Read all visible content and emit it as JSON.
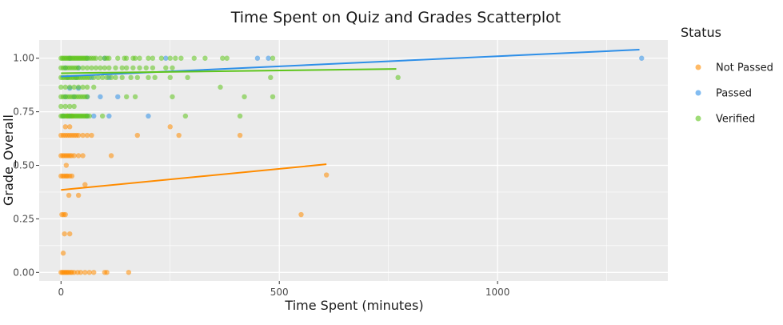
{
  "chart_data": {
    "type": "scatter",
    "title": "Time Spent on Quiz and Grades Scatterplot",
    "xlabel": "Time Spent (minutes)",
    "ylabel": "Grade_Overall",
    "xlim": [
      -50,
      1390
    ],
    "ylim": [
      -0.04,
      1.085
    ],
    "x_ticks": [
      0,
      500,
      1000
    ],
    "y_ticks": [
      0.0,
      0.25,
      0.5,
      0.75,
      1.0
    ],
    "x_tick_labels": [
      "0",
      "500",
      "1000"
    ],
    "y_tick_labels": [
      "0.00",
      "0.25",
      "0.50",
      "0.75",
      "1.00"
    ],
    "grid": true,
    "legend": {
      "title": "Status",
      "position": "right",
      "entries": [
        "Not Passed",
        "Passed",
        "Verified"
      ]
    },
    "colors": {
      "panel": "#ebebeb",
      "grid": "#ffffff",
      "Not Passed": "#ff8c00",
      "Passed": "#2e8fe8",
      "Verified": "#5fc51c"
    },
    "series": [
      {
        "name": "Not Passed",
        "points": [
          [
            0,
            0
          ],
          [
            3,
            0
          ],
          [
            6,
            0
          ],
          [
            9,
            0
          ],
          [
            12,
            0
          ],
          [
            15,
            0
          ],
          [
            18,
            0
          ],
          [
            22,
            0
          ],
          [
            25,
            0
          ],
          [
            30,
            0
          ],
          [
            38,
            0
          ],
          [
            45,
            0
          ],
          [
            55,
            0
          ],
          [
            65,
            0
          ],
          [
            75,
            0
          ],
          [
            100,
            0
          ],
          [
            105,
            0
          ],
          [
            155,
            0
          ],
          [
            5,
            0.09
          ],
          [
            8,
            0.18
          ],
          [
            20,
            0.18
          ],
          [
            2,
            0.27
          ],
          [
            6,
            0.27
          ],
          [
            10,
            0.27
          ],
          [
            18,
            0.36
          ],
          [
            40,
            0.36
          ],
          [
            55,
            0.41
          ],
          [
            0,
            0.45
          ],
          [
            4,
            0.45
          ],
          [
            8,
            0.45
          ],
          [
            12,
            0.45
          ],
          [
            15,
            0.45
          ],
          [
            20,
            0.45
          ],
          [
            25,
            0.45
          ],
          [
            12,
            0.5
          ],
          [
            0,
            0.545
          ],
          [
            4,
            0.545
          ],
          [
            8,
            0.545
          ],
          [
            12,
            0.545
          ],
          [
            16,
            0.545
          ],
          [
            20,
            0.545
          ],
          [
            24,
            0.545
          ],
          [
            30,
            0.545
          ],
          [
            40,
            0.545
          ],
          [
            50,
            0.545
          ],
          [
            115,
            0.545
          ],
          [
            0,
            0.64
          ],
          [
            5,
            0.64
          ],
          [
            10,
            0.64
          ],
          [
            15,
            0.64
          ],
          [
            20,
            0.64
          ],
          [
            25,
            0.64
          ],
          [
            30,
            0.64
          ],
          [
            35,
            0.64
          ],
          [
            40,
            0.64
          ],
          [
            50,
            0.64
          ],
          [
            60,
            0.64
          ],
          [
            70,
            0.64
          ],
          [
            10,
            0.68
          ],
          [
            20,
            0.68
          ],
          [
            15,
            0.73
          ],
          [
            25,
            0.73
          ],
          [
            175,
            0.64
          ],
          [
            250,
            0.68
          ],
          [
            270,
            0.64
          ],
          [
            410,
            0.64
          ],
          [
            550,
            0.27
          ],
          [
            608,
            0.455
          ]
        ],
        "trend": [
          [
            0,
            0.385
          ],
          [
            608,
            0.505
          ]
        ]
      },
      {
        "name": "Passed",
        "points": [
          [
            5,
            0.73
          ],
          [
            20,
            0.73
          ],
          [
            60,
            0.73
          ],
          [
            75,
            0.73
          ],
          [
            110,
            0.73
          ],
          [
            200,
            0.73
          ],
          [
            10,
            0.82
          ],
          [
            30,
            0.82
          ],
          [
            60,
            0.82
          ],
          [
            90,
            0.82
          ],
          [
            130,
            0.82
          ],
          [
            20,
            0.86
          ],
          [
            40,
            0.86
          ],
          [
            15,
            0.91
          ],
          [
            35,
            0.91
          ],
          [
            70,
            0.91
          ],
          [
            110,
            0.91
          ],
          [
            10,
            0.955
          ],
          [
            40,
            0.955
          ],
          [
            20,
            1.0
          ],
          [
            60,
            1.0
          ],
          [
            100,
            1.0
          ],
          [
            240,
            1.0
          ],
          [
            450,
            1.0
          ],
          [
            475,
            1.0
          ],
          [
            1330,
            1.0
          ]
        ],
        "trend": [
          [
            0,
            0.915
          ],
          [
            1325,
            1.04
          ]
        ]
      },
      {
        "name": "Verified",
        "points": [
          [
            0,
            1.0
          ],
          [
            3,
            1.0
          ],
          [
            6,
            1.0
          ],
          [
            9,
            1.0
          ],
          [
            12,
            1.0
          ],
          [
            15,
            1.0
          ],
          [
            18,
            1.0
          ],
          [
            21,
            1.0
          ],
          [
            24,
            1.0
          ],
          [
            27,
            1.0
          ],
          [
            30,
            1.0
          ],
          [
            33,
            1.0
          ],
          [
            36,
            1.0
          ],
          [
            39,
            1.0
          ],
          [
            42,
            1.0
          ],
          [
            45,
            1.0
          ],
          [
            48,
            1.0
          ],
          [
            51,
            1.0
          ],
          [
            54,
            1.0
          ],
          [
            57,
            1.0
          ],
          [
            60,
            1.0
          ],
          [
            65,
            1.0
          ],
          [
            70,
            1.0
          ],
          [
            75,
            1.0
          ],
          [
            80,
            1.0
          ],
          [
            90,
            1.0
          ],
          [
            100,
            1.0
          ],
          [
            105,
            1.0
          ],
          [
            110,
            1.0
          ],
          [
            130,
            1.0
          ],
          [
            145,
            1.0
          ],
          [
            150,
            1.0
          ],
          [
            165,
            1.0
          ],
          [
            170,
            1.0
          ],
          [
            180,
            1.0
          ],
          [
            200,
            1.0
          ],
          [
            210,
            1.0
          ],
          [
            230,
            1.0
          ],
          [
            250,
            1.0
          ],
          [
            262,
            1.0
          ],
          [
            275,
            1.0
          ],
          [
            305,
            1.0
          ],
          [
            330,
            1.0
          ],
          [
            370,
            1.0
          ],
          [
            380,
            1.0
          ],
          [
            485,
            1.0
          ],
          [
            0,
            0.955
          ],
          [
            5,
            0.955
          ],
          [
            10,
            0.955
          ],
          [
            15,
            0.955
          ],
          [
            20,
            0.955
          ],
          [
            25,
            0.955
          ],
          [
            30,
            0.955
          ],
          [
            35,
            0.955
          ],
          [
            40,
            0.955
          ],
          [
            50,
            0.955
          ],
          [
            60,
            0.955
          ],
          [
            70,
            0.955
          ],
          [
            80,
            0.955
          ],
          [
            90,
            0.955
          ],
          [
            100,
            0.955
          ],
          [
            110,
            0.955
          ],
          [
            125,
            0.955
          ],
          [
            140,
            0.955
          ],
          [
            150,
            0.955
          ],
          [
            165,
            0.955
          ],
          [
            180,
            0.955
          ],
          [
            195,
            0.955
          ],
          [
            210,
            0.955
          ],
          [
            240,
            0.955
          ],
          [
            255,
            0.955
          ],
          [
            0,
            0.91
          ],
          [
            4,
            0.91
          ],
          [
            8,
            0.91
          ],
          [
            12,
            0.91
          ],
          [
            16,
            0.91
          ],
          [
            20,
            0.91
          ],
          [
            24,
            0.91
          ],
          [
            28,
            0.91
          ],
          [
            32,
            0.91
          ],
          [
            36,
            0.91
          ],
          [
            40,
            0.91
          ],
          [
            45,
            0.91
          ],
          [
            50,
            0.91
          ],
          [
            55,
            0.91
          ],
          [
            60,
            0.91
          ],
          [
            65,
            0.91
          ],
          [
            75,
            0.91
          ],
          [
            85,
            0.91
          ],
          [
            95,
            0.91
          ],
          [
            105,
            0.91
          ],
          [
            115,
            0.91
          ],
          [
            125,
            0.91
          ],
          [
            140,
            0.91
          ],
          [
            160,
            0.91
          ],
          [
            175,
            0.91
          ],
          [
            200,
            0.91
          ],
          [
            215,
            0.91
          ],
          [
            250,
            0.91
          ],
          [
            290,
            0.91
          ],
          [
            480,
            0.91
          ],
          [
            772,
            0.91
          ],
          [
            0,
            0.865
          ],
          [
            10,
            0.865
          ],
          [
            20,
            0.865
          ],
          [
            30,
            0.865
          ],
          [
            40,
            0.865
          ],
          [
            50,
            0.865
          ],
          [
            60,
            0.865
          ],
          [
            75,
            0.865
          ],
          [
            365,
            0.865
          ],
          [
            0,
            0.82
          ],
          [
            5,
            0.82
          ],
          [
            10,
            0.82
          ],
          [
            15,
            0.82
          ],
          [
            20,
            0.82
          ],
          [
            25,
            0.82
          ],
          [
            30,
            0.82
          ],
          [
            35,
            0.82
          ],
          [
            40,
            0.82
          ],
          [
            45,
            0.82
          ],
          [
            50,
            0.82
          ],
          [
            55,
            0.82
          ],
          [
            60,
            0.82
          ],
          [
            150,
            0.82
          ],
          [
            170,
            0.82
          ],
          [
            255,
            0.82
          ],
          [
            420,
            0.82
          ],
          [
            485,
            0.82
          ],
          [
            0,
            0.775
          ],
          [
            10,
            0.775
          ],
          [
            20,
            0.775
          ],
          [
            30,
            0.775
          ],
          [
            0,
            0.73
          ],
          [
            3,
            0.73
          ],
          [
            6,
            0.73
          ],
          [
            9,
            0.73
          ],
          [
            12,
            0.73
          ],
          [
            15,
            0.73
          ],
          [
            18,
            0.73
          ],
          [
            21,
            0.73
          ],
          [
            24,
            0.73
          ],
          [
            27,
            0.73
          ],
          [
            30,
            0.73
          ],
          [
            33,
            0.73
          ],
          [
            36,
            0.73
          ],
          [
            39,
            0.73
          ],
          [
            42,
            0.73
          ],
          [
            45,
            0.73
          ],
          [
            48,
            0.73
          ],
          [
            51,
            0.73
          ],
          [
            54,
            0.73
          ],
          [
            57,
            0.73
          ],
          [
            60,
            0.73
          ],
          [
            65,
            0.73
          ],
          [
            95,
            0.73
          ],
          [
            285,
            0.73
          ],
          [
            410,
            0.73
          ]
        ],
        "trend": [
          [
            0,
            0.93
          ],
          [
            768,
            0.95
          ]
        ]
      }
    ]
  }
}
